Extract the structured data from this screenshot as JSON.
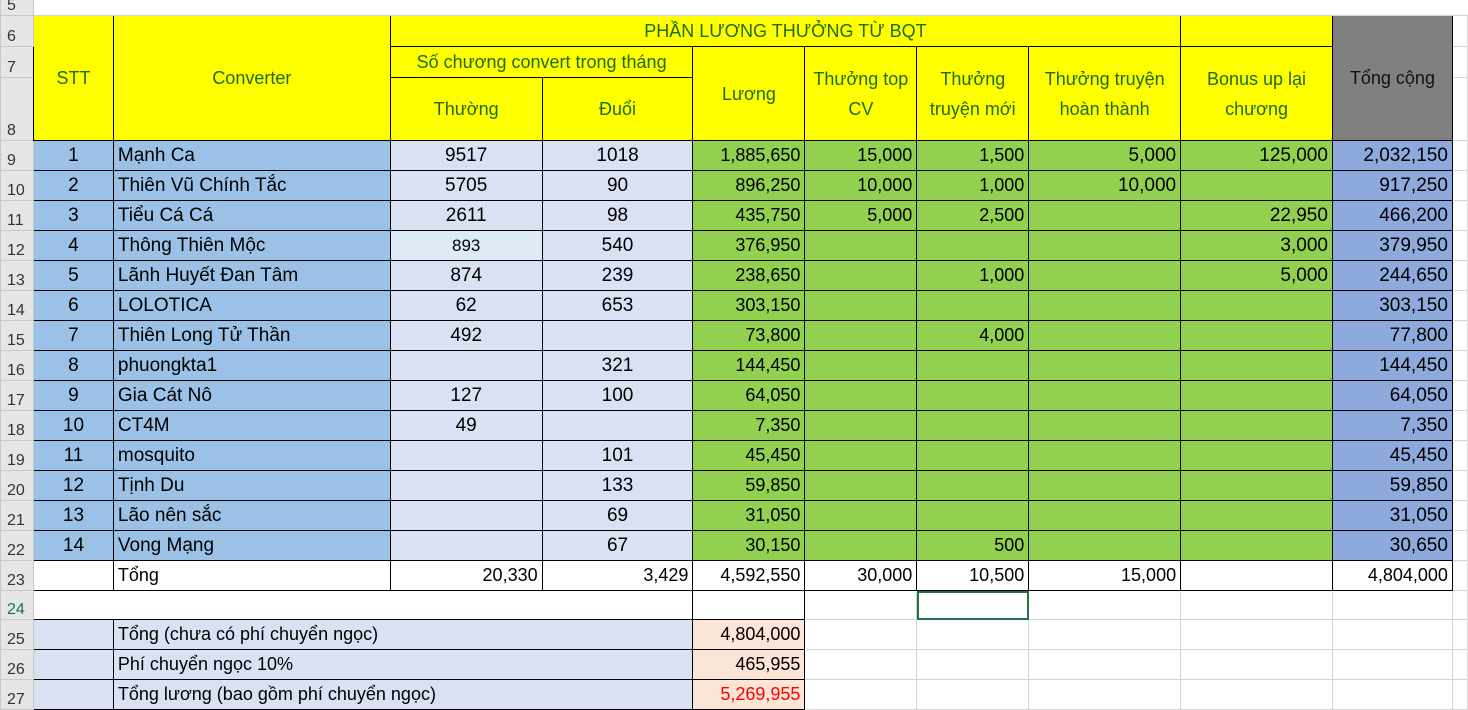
{
  "row_numbers": [
    "5",
    "6",
    "7",
    "8",
    "9",
    "10",
    "11",
    "12",
    "13",
    "14",
    "15",
    "16",
    "17",
    "18",
    "19",
    "20",
    "21",
    "22",
    "23",
    "24",
    "25",
    "26",
    "27"
  ],
  "header": {
    "stt": "STT",
    "converter": "Converter",
    "group": "PHẦN LƯƠNG THƯỞNG TỪ BQT",
    "chapters": "Số chương convert trong tháng",
    "thuong": "Thường",
    "duoi": "Đuổi",
    "luong": "Lương",
    "top_cv": "Thưởng top CV",
    "truyen_moi": "Thưởng truyện mới",
    "hoan_thanh": "Thưởng truyện hoàn thành",
    "bonus": "Bonus up lại chương",
    "tong_cong": "Tổng cộng"
  },
  "rows": [
    {
      "stt": "1",
      "name": "Mạnh Ca",
      "thuong": "9517",
      "duoi": "1018",
      "luong": "1,885,650",
      "top_cv": "15,000",
      "truyen_moi": "1,500",
      "hoan_thanh": "5,000",
      "bonus": "125,000",
      "tong": "2,032,150"
    },
    {
      "stt": "2",
      "name": "Thiên Vũ Chính Tắc",
      "thuong": "5705",
      "duoi": "90",
      "luong": "896,250",
      "top_cv": "10,000",
      "truyen_moi": "1,000",
      "hoan_thanh": "10,000",
      "bonus": "",
      "tong": "917,250"
    },
    {
      "stt": "3",
      "name": "Tiểu Cá Cá",
      "thuong": "2611",
      "duoi": "98",
      "luong": "435,750",
      "top_cv": "5,000",
      "truyen_moi": "2,500",
      "hoan_thanh": "",
      "bonus": "22,950",
      "tong": "466,200"
    },
    {
      "stt": "4",
      "name": "Thông Thiên Mộc",
      "thuong": "893",
      "duoi": "540",
      "luong": "376,950",
      "top_cv": "",
      "truyen_moi": "",
      "hoan_thanh": "",
      "bonus": "3,000",
      "tong": "379,950"
    },
    {
      "stt": "5",
      "name": "Lãnh Huyết Đan Tâm",
      "thuong": "874",
      "duoi": "239",
      "luong": "238,650",
      "top_cv": "",
      "truyen_moi": "1,000",
      "hoan_thanh": "",
      "bonus": "5,000",
      "tong": "244,650"
    },
    {
      "stt": "6",
      "name": "LOLOTICA",
      "thuong": "62",
      "duoi": "653",
      "luong": "303,150",
      "top_cv": "",
      "truyen_moi": "",
      "hoan_thanh": "",
      "bonus": "",
      "tong": "303,150"
    },
    {
      "stt": "7",
      "name": "Thiên Long Tử Thần",
      "thuong": "492",
      "duoi": "",
      "luong": "73,800",
      "top_cv": "",
      "truyen_moi": "4,000",
      "hoan_thanh": "",
      "bonus": "",
      "tong": "77,800"
    },
    {
      "stt": "8",
      "name": "phuongkta1",
      "thuong": "",
      "duoi": "321",
      "luong": "144,450",
      "top_cv": "",
      "truyen_moi": "",
      "hoan_thanh": "",
      "bonus": "",
      "tong": "144,450"
    },
    {
      "stt": "9",
      "name": "Gia Cát Nô",
      "thuong": "127",
      "duoi": "100",
      "luong": "64,050",
      "top_cv": "",
      "truyen_moi": "",
      "hoan_thanh": "",
      "bonus": "",
      "tong": "64,050"
    },
    {
      "stt": "10",
      "name": "CT4M",
      "thuong": "49",
      "duoi": "",
      "luong": "7,350",
      "top_cv": "",
      "truyen_moi": "",
      "hoan_thanh": "",
      "bonus": "",
      "tong": "7,350"
    },
    {
      "stt": "11",
      "name": "mosquito",
      "thuong": "",
      "duoi": "101",
      "luong": "45,450",
      "top_cv": "",
      "truyen_moi": "",
      "hoan_thanh": "",
      "bonus": "",
      "tong": "45,450"
    },
    {
      "stt": "12",
      "name": "Tịnh Du",
      "thuong": "",
      "duoi": "133",
      "luong": "59,850",
      "top_cv": "",
      "truyen_moi": "",
      "hoan_thanh": "",
      "bonus": "",
      "tong": "59,850"
    },
    {
      "stt": "13",
      "name": "Lão nên sắc",
      "thuong": "",
      "duoi": "69",
      "luong": "31,050",
      "top_cv": "",
      "truyen_moi": "",
      "hoan_thanh": "",
      "bonus": "",
      "tong": "31,050"
    },
    {
      "stt": "14",
      "name": "Vong Mạng",
      "thuong": "",
      "duoi": "67",
      "luong": "30,150",
      "top_cv": "",
      "truyen_moi": "500",
      "hoan_thanh": "",
      "bonus": "",
      "tong": "30,650"
    }
  ],
  "totals": {
    "label": "Tổng",
    "thuong": "20,330",
    "duoi": "3,429",
    "luong": "4,592,550",
    "top_cv": "30,000",
    "truyen_moi": "10,500",
    "hoan_thanh": "15,000",
    "bonus": "",
    "tong": "4,804,000"
  },
  "summary": [
    {
      "label": "Tổng (chưa có phí chuyển ngọc)",
      "value": "4,804,000"
    },
    {
      "label": "Phí chuyển ngọc 10%",
      "value": "465,955"
    },
    {
      "label": "Tổng lương (bao gồm phí chuyển ngọc)",
      "value": "5,269,955",
      "color": "#ff0000"
    }
  ],
  "colors": {
    "header": "#ffff00",
    "header_text": "#1e6b10",
    "name_col": "#9bc2e6",
    "count_col": "#d9e1f2",
    "bonus_cols": "#92d050",
    "total_col": "#8ea9db",
    "total_header": "#808080",
    "summary_value": "#fce4d6"
  }
}
